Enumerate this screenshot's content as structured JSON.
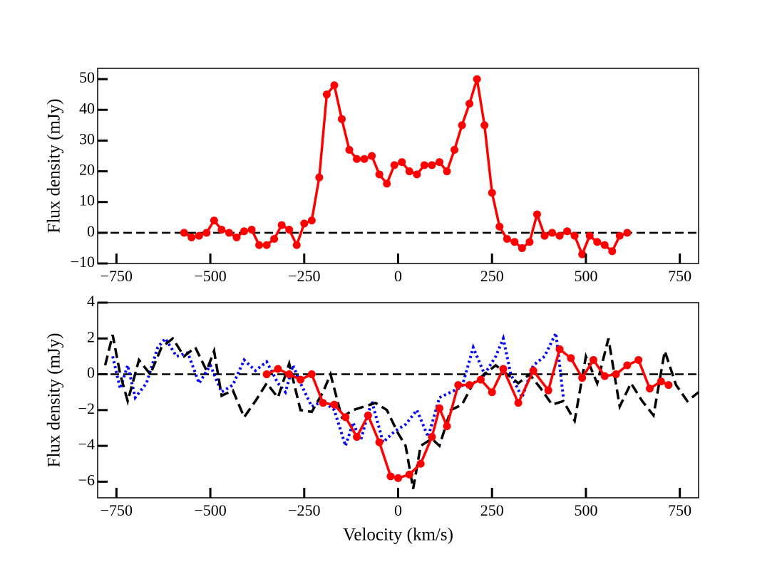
{
  "chart_data": [
    {
      "type": "line",
      "ylabel": "Flux density (mJy)",
      "zero_line": true,
      "xlim": [
        -800,
        800
      ],
      "ylim": [
        -10,
        53.5
      ],
      "xticks": [
        {
          "value": -750,
          "label": "−750"
        },
        {
          "value": -500,
          "label": "−500"
        },
        {
          "value": -250,
          "label": "−250"
        },
        0,
        250,
        500,
        750
      ],
      "yticks": [
        {
          "value": -10,
          "label": "−10"
        },
        0,
        10,
        20,
        30,
        40,
        50
      ],
      "series": [
        {
          "color": "#ff0000",
          "style": "solid-markers",
          "x": [
            -570,
            -550,
            -530,
            -510,
            -490,
            -470,
            -450,
            -430,
            -410,
            -390,
            -370,
            -350,
            -330,
            -310,
            -290,
            -270,
            -250,
            -230,
            -210,
            -190,
            -170,
            -150,
            -130,
            -110,
            -90,
            -70,
            -50,
            -30,
            -10,
            10,
            30,
            50,
            70,
            90,
            110,
            130,
            150,
            170,
            190,
            210,
            230,
            250,
            270,
            290,
            310,
            330,
            350,
            370,
            390,
            410,
            430,
            450,
            470,
            490,
            510,
            530,
            550,
            570,
            590,
            610
          ],
          "values": [
            0,
            -1.5,
            -1,
            0,
            4,
            1,
            0,
            -1.5,
            0.5,
            1,
            -4,
            -4,
            -2,
            2.5,
            1,
            -4,
            3,
            4,
            18,
            45,
            48,
            37,
            27,
            24,
            24,
            25,
            19,
            16,
            22,
            23,
            20,
            19,
            22,
            22,
            23,
            20,
            27,
            35,
            42,
            50,
            35,
            13,
            2,
            -2,
            -3,
            -5,
            -3,
            6,
            -1,
            0,
            -1,
            0.5,
            -1,
            -7,
            -1,
            -3,
            -4,
            -6,
            -1,
            0
          ]
        }
      ]
    },
    {
      "type": "line",
      "ylabel": "Flux density (mJy)",
      "xlabel": "Velocity (km/s)",
      "zero_line": true,
      "xlim": [
        -800,
        800
      ],
      "ylim": [
        -6.9,
        4
      ],
      "xticks": [
        {
          "value": -750,
          "label": "−750"
        },
        {
          "value": -500,
          "label": "−500"
        },
        {
          "value": -250,
          "label": "−250"
        },
        0,
        250,
        500,
        750
      ],
      "yticks": [
        {
          "value": -6,
          "label": "−6"
        },
        {
          "value": -4,
          "label": "−4"
        },
        {
          "value": -2,
          "label": "−2"
        },
        0,
        2,
        4
      ],
      "series": [
        {
          "color": "#0000ff",
          "style": "dotted",
          "x": [
            -760,
            -740,
            -720,
            -700,
            -670,
            -640,
            -620,
            -590,
            -560,
            -530,
            -500,
            -470,
            -440,
            -410,
            -380,
            -350,
            -320,
            -300,
            -280,
            -260,
            -230,
            -200,
            -170,
            -140,
            -120,
            -100,
            -70,
            -40,
            -10,
            20,
            50,
            80,
            110,
            140,
            170,
            200,
            230,
            260,
            280,
            300,
            330,
            360,
            390,
            420,
            440
          ],
          "values": [
            1,
            -0.8,
            0.5,
            -1.3,
            -0.5,
            1.5,
            2,
            1,
            1.2,
            -0.5,
            0.5,
            -1,
            -0.6,
            0.8,
            0.2,
            0.7,
            -0.5,
            -1,
            0.5,
            -0.5,
            -1.8,
            -1.5,
            -2,
            -4,
            -2.7,
            -3.7,
            -1.5,
            -3.8,
            -3.2,
            -2.8,
            -2,
            -3.5,
            -1.3,
            -1,
            -0.7,
            1.5,
            0,
            1,
            2,
            0,
            -1.3,
            0.5,
            1,
            2.3,
            -1.3
          ]
        },
        {
          "color": "#000000",
          "style": "dashed",
          "x": [
            -780,
            -760,
            -740,
            -720,
            -690,
            -660,
            -630,
            -600,
            -570,
            -540,
            -510,
            -490,
            -470,
            -440,
            -410,
            -380,
            -350,
            -320,
            -290,
            -260,
            -230,
            -200,
            -180,
            -150,
            -120,
            -90,
            -60,
            -30,
            0,
            20,
            40,
            60,
            90,
            110,
            140,
            170,
            200,
            230,
            260,
            290,
            320,
            350,
            380,
            410,
            440,
            470,
            500,
            530,
            560,
            590,
            620,
            650,
            680,
            710,
            740,
            770,
            800
          ],
          "values": [
            0.5,
            2.2,
            0,
            -1.5,
            0.8,
            0,
            1.5,
            2,
            1,
            1.5,
            0.2,
            1.3,
            -1.2,
            -0.9,
            -2.4,
            -1.5,
            -0.5,
            -1.3,
            0.6,
            -2,
            -2.1,
            -1,
            0,
            -2.4,
            -2,
            -1.8,
            -1.6,
            -2,
            -3.3,
            -4,
            -6.4,
            -4,
            -3.6,
            -4,
            -2,
            -1.7,
            -0.5,
            0,
            0.5,
            0,
            -0.5,
            0,
            -0.8,
            -1.7,
            -1.5,
            -2.6,
            1,
            -0.5,
            2,
            -1.8,
            -0.5,
            -1.5,
            -2.3,
            1.3,
            -0.6,
            -1.5,
            -1
          ]
        },
        {
          "color": "#ff0000",
          "style": "solid-markers",
          "x": [
            -350,
            -320,
            -290,
            -260,
            -230,
            -200,
            -170,
            -140,
            -110,
            -80,
            -50,
            -20,
            0,
            30,
            60,
            90,
            110,
            130,
            160,
            190,
            220,
            250,
            280,
            320,
            360,
            400,
            430,
            460,
            490,
            520,
            550,
            580,
            610,
            640,
            670,
            700,
            720
          ],
          "values": [
            0,
            0.3,
            0,
            -0.3,
            0,
            -1.6,
            -1.7,
            -2.4,
            -3.5,
            -2.3,
            -3.8,
            -5.7,
            -5.8,
            -5.6,
            -5,
            -3.5,
            -1.9,
            -2.9,
            -0.6,
            -0.6,
            -0.3,
            -1,
            0.3,
            -1.6,
            0.2,
            -0.9,
            1.4,
            0.9,
            -0.2,
            0.8,
            -0.1,
            0,
            0.5,
            0.8,
            -0.8,
            -0.4,
            -0.6
          ]
        }
      ]
    }
  ]
}
